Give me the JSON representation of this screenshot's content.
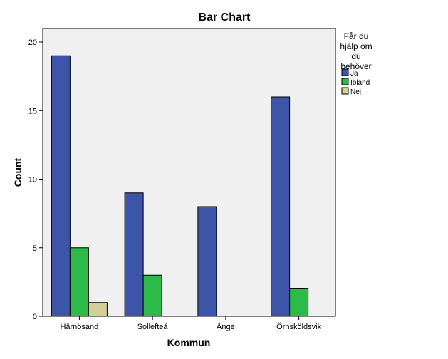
{
  "chart_data": {
    "type": "bar",
    "title": "Bar Chart",
    "xlabel": "Kommun",
    "ylabel": "Count",
    "ylim": [
      0,
      20
    ],
    "yticks": [
      0,
      5,
      10,
      15,
      20
    ],
    "categories": [
      "Härnösand",
      "Sollefteå",
      "Ånge",
      "Örnsköldsvik"
    ],
    "legend": {
      "title_lines": [
        "Får du",
        "hjälp om",
        "du",
        "behöver"
      ],
      "placement": "right"
    },
    "grid": false,
    "series": [
      {
        "name": "Ja",
        "color": "#3D55A8",
        "values": [
          19,
          9,
          8,
          16
        ]
      },
      {
        "name": "Ibland",
        "color": "#2EBA48",
        "values": [
          5,
          3,
          0,
          2
        ]
      },
      {
        "name": "Nej",
        "color": "#D4CF9A",
        "values": [
          1,
          0,
          0,
          0
        ]
      }
    ]
  }
}
